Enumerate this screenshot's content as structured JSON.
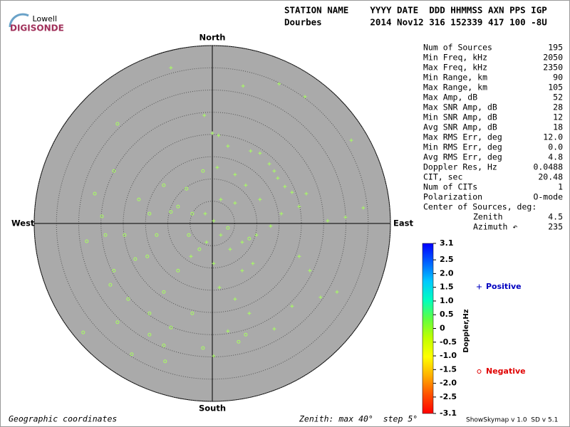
{
  "logo": {
    "top": "Lowell",
    "name": "DIGISONDE"
  },
  "header": {
    "line1": "STATION NAME    YYYY DATE  DDD HHMMSS AXN PPS IGP",
    "line2": "Dourbes         2014 Nov12 316 152339 417 100 -8U"
  },
  "stats": {
    "rows": [
      [
        "Num of Sources",
        "195"
      ],
      [
        "Min Freq, kHz",
        "2050"
      ],
      [
        "Max Freq, kHz",
        "2350"
      ],
      [
        "Min Range, km",
        "90"
      ],
      [
        "Max Range, km",
        "105"
      ],
      [
        "Max Amp, dB",
        "52"
      ],
      [
        "Max SNR Amp, dB",
        "28"
      ],
      [
        "Min SNR Amp, dB",
        "12"
      ],
      [
        "Avg SNR Amp, dB",
        "18"
      ],
      [
        "Max RMS Err, deg",
        "12.0"
      ],
      [
        "Min RMS Err, deg",
        "0.0"
      ],
      [
        "Avg RMS Err, deg",
        "4.8"
      ],
      [
        "Doppler Res, Hz",
        "0.0488"
      ],
      [
        "CIT, sec",
        "20.48"
      ],
      [
        "Num of CITs",
        "1"
      ],
      [
        "Polarization",
        "O-mode"
      ]
    ],
    "center_title": "Center of Sources, deg:",
    "center_rows": [
      [
        "Zenith",
        "4.5"
      ],
      [
        "Azimuth ↶",
        "235"
      ]
    ]
  },
  "footer": {
    "left": "Geographic coordinates",
    "middle": "Zenith: max 40°  step 5°",
    "right": "ShowSkymap v 1.0  SD v 5.1"
  },
  "chart_data": {
    "type": "polar-scatter",
    "directions": {
      "north": "North",
      "south": "South",
      "east": "East",
      "west": "West"
    },
    "rlim": [
      0,
      40
    ],
    "rticks": [
      5,
      10,
      15,
      20,
      25,
      30,
      35,
      40
    ],
    "series": [
      {
        "name": "Positive",
        "marker": "plus",
        "color": "#a8ff60",
        "legend_color": "#0000c0",
        "x": [
          -9.3,
          -1.8,
          0,
          1.4,
          6.9,
          15.0,
          20.8,
          31.2,
          3.5,
          8.6,
          10.7,
          12.8,
          13.9,
          14.7,
          16.3,
          17.9,
          19.5,
          15.5,
          13.1,
          9.9,
          6.7,
          4.0,
          1.9,
          0.3,
          -1.6,
          1.1,
          5.1,
          7.5,
          1.9,
          5.1,
          10.7,
          21.1,
          25.9,
          29.9,
          33.9,
          28.0,
          24.3,
          17.9,
          13.9,
          8.3,
          3.5,
          0.3,
          6.7,
          9.1,
          0.3,
          -1.3,
          -4.8,
          1.6,
          5.1,
          21.9,
          19.5
        ],
        "y": [
          35.0,
          24.3,
          20.3,
          19.8,
          30.9,
          31.4,
          28.5,
          18.7,
          17.4,
          16.3,
          15.8,
          13.4,
          11.8,
          10.2,
          8.3,
          7.0,
          3.8,
          2.2,
          -0.6,
          -2.6,
          -4.2,
          -5.8,
          -2.6,
          0.6,
          2.2,
          12.6,
          11.0,
          8.6,
          5.4,
          4.6,
          5.4,
          6.7,
          0.6,
          1.4,
          3.5,
          -15.4,
          -16.6,
          -18.6,
          -23.7,
          -20.2,
          -24.2,
          -29.8,
          -10.6,
          -9.0,
          -9.0,
          -4.2,
          -7.4,
          -14.4,
          -17.0,
          -10.6,
          -7.4
        ]
      },
      {
        "name": "Negative",
        "marker": "circle",
        "color": "#a8ff60",
        "legend_color": "#e00000",
        "x": [
          -21.3,
          -22.1,
          -26.4,
          -24.8,
          -28.2,
          -24.0,
          -19.7,
          -22.1,
          -22.9,
          -18.9,
          -14.1,
          -10.9,
          -9.3,
          -4.5,
          -14.1,
          -10.9,
          -18.1,
          -10.6,
          -2.1,
          -29.0,
          -21.3,
          -17.3,
          -14.1,
          -9.3,
          -5.3,
          -2.9,
          -7.7,
          -14.6,
          -12.5,
          -16.5,
          -10.9,
          -7.7,
          -4.5,
          3.5,
          8.3,
          7.5,
          5.9,
          -5.8,
          -2.1
        ],
        "y": [
          22.4,
          11.8,
          6.7,
          1.6,
          -4.0,
          -2.6,
          -2.6,
          -10.6,
          -13.8,
          -17.0,
          -20.2,
          -15.4,
          -23.4,
          -20.2,
          -25.0,
          -27.4,
          -29.4,
          -31.0,
          -28.0,
          -24.5,
          -22.2,
          -8.0,
          2.2,
          2.6,
          -2.6,
          -5.8,
          -10.6,
          -7.4,
          -2.6,
          5.4,
          8.6,
          3.8,
          2.2,
          -1.0,
          -3.4,
          -25.0,
          -26.6,
          7.8,
          11.8
        ]
      }
    ],
    "colorbar": {
      "label": "Doppler,Hz",
      "lim": [
        -3.1,
        3.1
      ],
      "ticks": [
        3.1,
        2.5,
        {
          "value": 2.0,
          "label": "2.0"
        },
        1.5,
        {
          "value": 1.0,
          "label": "1.0"
        },
        0.5,
        0,
        -0.5,
        {
          "value": -1.0,
          "label": "-1.0"
        },
        -1.5,
        {
          "value": -2.0,
          "label": "-2.0"
        },
        -2.5,
        -3.1
      ],
      "colors": [
        "#0000ff",
        "#0060ff",
        "#00c8ff",
        "#00ffc0",
        "#60ff40",
        "#c0ff00",
        "#ffff00",
        "#ffb000",
        "#ff5000",
        "#ff0000"
      ]
    }
  }
}
